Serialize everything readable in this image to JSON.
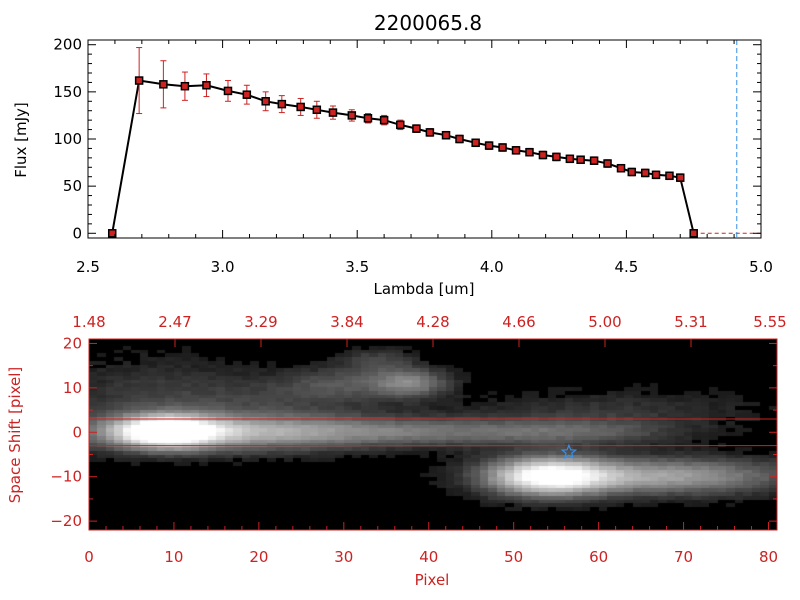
{
  "title": "2200065.8",
  "chart_data": [
    {
      "type": "line",
      "xlabel": "Lambda [um]",
      "ylabel": "Flux [mJy]",
      "xlim": [
        2.5,
        5.0
      ],
      "ylim": [
        -5,
        205
      ],
      "x_ticks": [
        "2.5",
        "3.0",
        "3.5",
        "4.0",
        "4.5",
        "5.0"
      ],
      "y_ticks": [
        "0",
        "50",
        "100",
        "150",
        "200"
      ],
      "vline_x": 4.91,
      "series": [
        {
          "x": [
            2.59,
            2.69,
            2.78,
            2.86,
            2.94,
            3.02,
            3.09,
            3.16,
            3.22,
            3.29,
            3.35,
            3.41,
            3.48,
            3.54,
            3.6,
            3.66,
            3.72,
            3.77,
            3.83,
            3.88,
            3.94,
            3.99,
            4.04,
            4.09,
            4.14,
            4.19,
            4.24,
            4.29,
            4.33,
            4.38,
            4.43,
            4.48,
            4.52,
            4.57,
            4.61,
            4.66,
            4.7,
            4.75
          ],
          "y": [
            0,
            162,
            158,
            156,
            157,
            151,
            147,
            140,
            137,
            134,
            131,
            128,
            125,
            122,
            120,
            115,
            111,
            107,
            104,
            100,
            96,
            93,
            91,
            88,
            86,
            83,
            81,
            79,
            78,
            77,
            74,
            69,
            65,
            64,
            62,
            61,
            59,
            0
          ],
          "yerr": [
            0,
            35,
            25,
            15,
            12,
            11,
            10,
            10,
            9,
            9,
            9,
            7,
            6,
            5,
            5,
            5,
            4,
            4,
            4,
            4,
            4,
            4,
            4,
            4,
            4,
            4,
            4,
            4,
            4,
            4,
            4,
            4,
            4,
            4,
            4,
            4,
            4,
            0
          ]
        }
      ]
    },
    {
      "type": "heatmap",
      "xlabel": "Pixel",
      "ylabel": "Space Shift [pixel]",
      "xlim": [
        0,
        81
      ],
      "ylim": [
        -22,
        21
      ],
      "x_ticks": [
        "0",
        "10",
        "20",
        "30",
        "40",
        "50",
        "60",
        "70",
        "80"
      ],
      "y_ticks": [
        "−20",
        "−10",
        "0",
        "10",
        "20"
      ],
      "top_axis_ticks": [
        "1.48",
        "2.47",
        "3.29",
        "3.84",
        "4.28",
        "4.66",
        "5.00",
        "5.31",
        "5.55"
      ],
      "aperture_lines_y": [
        3,
        -3
      ],
      "star_marker": {
        "x": 56.5,
        "y": -4.5
      },
      "sources": [
        {
          "x": 9,
          "y": 0,
          "sx": 4.0,
          "sy": 2.4,
          "amp": 1.0
        },
        {
          "x": 16,
          "y": 0,
          "sx": 12,
          "sy": 3.0,
          "amp": 0.55
        },
        {
          "x": 40,
          "y": 0,
          "sx": 14,
          "sy": 2.2,
          "amp": 0.3
        },
        {
          "x": 58,
          "y": 0,
          "sx": 8,
          "sy": 2.0,
          "amp": 0.18
        },
        {
          "x": 54,
          "y": -10,
          "sx": 5,
          "sy": 3.0,
          "amp": 0.95
        },
        {
          "x": 68,
          "y": -10,
          "sx": 10,
          "sy": 2.8,
          "amp": 0.55
        },
        {
          "x": 38,
          "y": 11,
          "sx": 3,
          "sy": 2.2,
          "amp": 0.4
        },
        {
          "x": 30,
          "y": 11,
          "sx": 5,
          "sy": 2.5,
          "amp": 0.2
        },
        {
          "x": 34,
          "y": 16,
          "sx": 3,
          "sy": 2,
          "amp": 0.18
        },
        {
          "x": 24,
          "y": 8,
          "sx": 8,
          "sy": 3,
          "amp": 0.12
        },
        {
          "x": 62,
          "y": 5,
          "sx": 12,
          "sy": 3,
          "amp": 0.12
        },
        {
          "x": 8,
          "y": 8,
          "sx": 8,
          "sy": 6,
          "amp": 0.15
        }
      ]
    }
  ]
}
